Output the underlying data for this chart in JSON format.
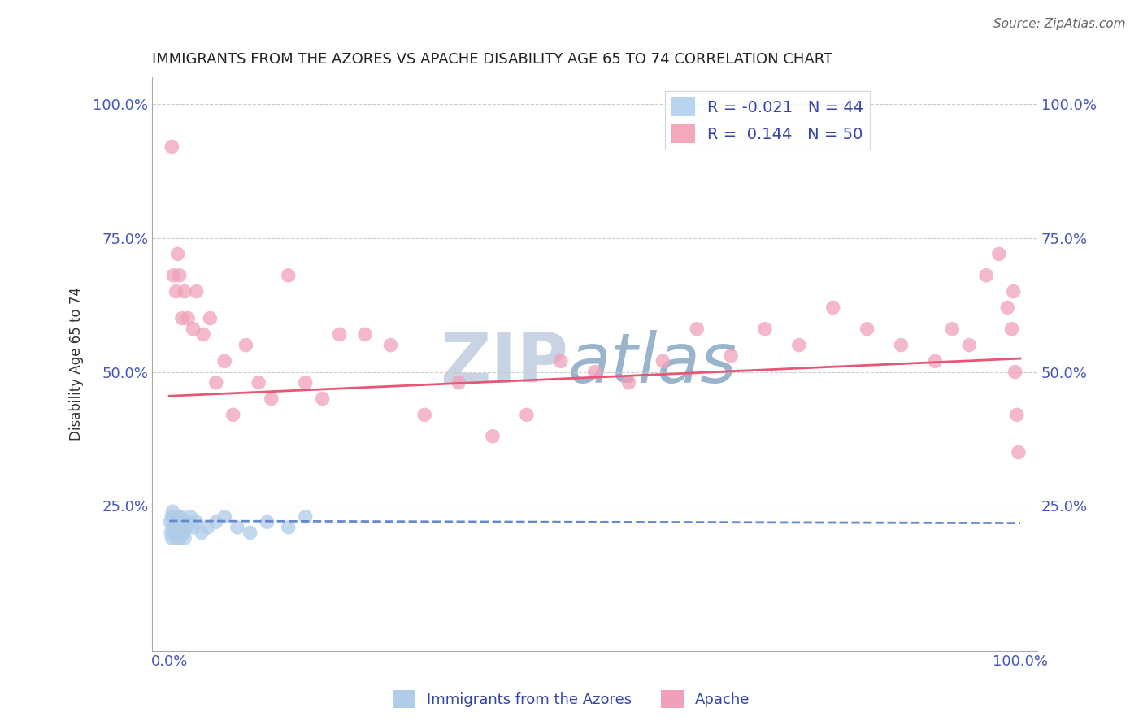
{
  "title": "IMMIGRANTS FROM THE AZORES VS APACHE DISABILITY AGE 65 TO 74 CORRELATION CHART",
  "source_text": "Source: ZipAtlas.com",
  "ylabel": "Disability Age 65 to 74",
  "xlim": [
    -0.02,
    1.02
  ],
  "ylim": [
    -0.02,
    1.05
  ],
  "xtick_labels": [
    "0.0%",
    "100.0%"
  ],
  "xtick_vals": [
    0.0,
    1.0
  ],
  "ytick_labels": [
    "25.0%",
    "50.0%",
    "75.0%",
    "100.0%"
  ],
  "ytick_vals": [
    0.25,
    0.5,
    0.75,
    1.0
  ],
  "watermark_zip": "ZIP",
  "watermark_atlas": "atlas",
  "legend_entries": [
    {
      "label": "R = -0.021   N = 44",
      "color": "#b8d4ee"
    },
    {
      "label": "R =  0.144   N = 50",
      "color": "#f4a8bc"
    }
  ],
  "legend_bottom_labels": [
    "Immigrants from the Azores",
    "Apache"
  ],
  "blue_scatter_x": [
    0.001,
    0.002,
    0.003,
    0.003,
    0.004,
    0.004,
    0.005,
    0.005,
    0.006,
    0.006,
    0.007,
    0.007,
    0.008,
    0.008,
    0.009,
    0.009,
    0.01,
    0.01,
    0.011,
    0.011,
    0.012,
    0.012,
    0.013,
    0.013,
    0.014,
    0.015,
    0.016,
    0.017,
    0.018,
    0.019,
    0.02,
    0.022,
    0.025,
    0.028,
    0.032,
    0.038,
    0.045,
    0.055,
    0.065,
    0.08,
    0.095,
    0.115,
    0.14,
    0.16
  ],
  "blue_scatter_y": [
    0.22,
    0.2,
    0.19,
    0.23,
    0.21,
    0.24,
    0.2,
    0.22,
    0.21,
    0.23,
    0.2,
    0.22,
    0.19,
    0.21,
    0.23,
    0.2,
    0.22,
    0.21,
    0.23,
    0.2,
    0.22,
    0.19,
    0.21,
    0.23,
    0.2,
    0.22,
    0.21,
    0.2,
    0.19,
    0.22,
    0.21,
    0.22,
    0.23,
    0.21,
    0.22,
    0.2,
    0.21,
    0.22,
    0.23,
    0.21,
    0.2,
    0.22,
    0.21,
    0.23
  ],
  "pink_scatter_x": [
    0.003,
    0.005,
    0.008,
    0.01,
    0.012,
    0.015,
    0.018,
    0.022,
    0.028,
    0.032,
    0.04,
    0.048,
    0.055,
    0.065,
    0.075,
    0.09,
    0.105,
    0.12,
    0.14,
    0.16,
    0.18,
    0.2,
    0.23,
    0.26,
    0.3,
    0.34,
    0.38,
    0.42,
    0.46,
    0.5,
    0.54,
    0.58,
    0.62,
    0.66,
    0.7,
    0.74,
    0.78,
    0.82,
    0.86,
    0.9,
    0.92,
    0.94,
    0.96,
    0.975,
    0.985,
    0.99,
    0.992,
    0.994,
    0.996,
    0.998
  ],
  "pink_scatter_y": [
    0.92,
    0.68,
    0.65,
    0.72,
    0.68,
    0.6,
    0.65,
    0.6,
    0.58,
    0.65,
    0.57,
    0.6,
    0.48,
    0.52,
    0.42,
    0.55,
    0.48,
    0.45,
    0.68,
    0.48,
    0.45,
    0.57,
    0.57,
    0.55,
    0.42,
    0.48,
    0.38,
    0.42,
    0.52,
    0.5,
    0.48,
    0.52,
    0.58,
    0.53,
    0.58,
    0.55,
    0.62,
    0.58,
    0.55,
    0.52,
    0.58,
    0.55,
    0.68,
    0.72,
    0.62,
    0.58,
    0.65,
    0.5,
    0.42,
    0.35
  ],
  "blue_line_x": [
    0.0,
    1.0
  ],
  "blue_line_y_start": 0.222,
  "blue_line_y_end": 0.218,
  "pink_line_x": [
    0.0,
    1.0
  ],
  "pink_line_y_start": 0.455,
  "pink_line_y_end": 0.525,
  "title_color": "#222222",
  "source_color": "#666666",
  "axis_label_color": "#333333",
  "tick_color": "#4455bb",
  "blue_dot_color": "#b0cce8",
  "pink_dot_color": "#f0a0b8",
  "blue_line_color": "#6688cc",
  "pink_line_color": "#e85575",
  "grid_color": "#cccccc",
  "watermark_color_zip": "#c8d4e4",
  "watermark_color_atlas": "#9ab4cc",
  "legend_text_color": "#3344aa",
  "background_color": "#ffffff"
}
